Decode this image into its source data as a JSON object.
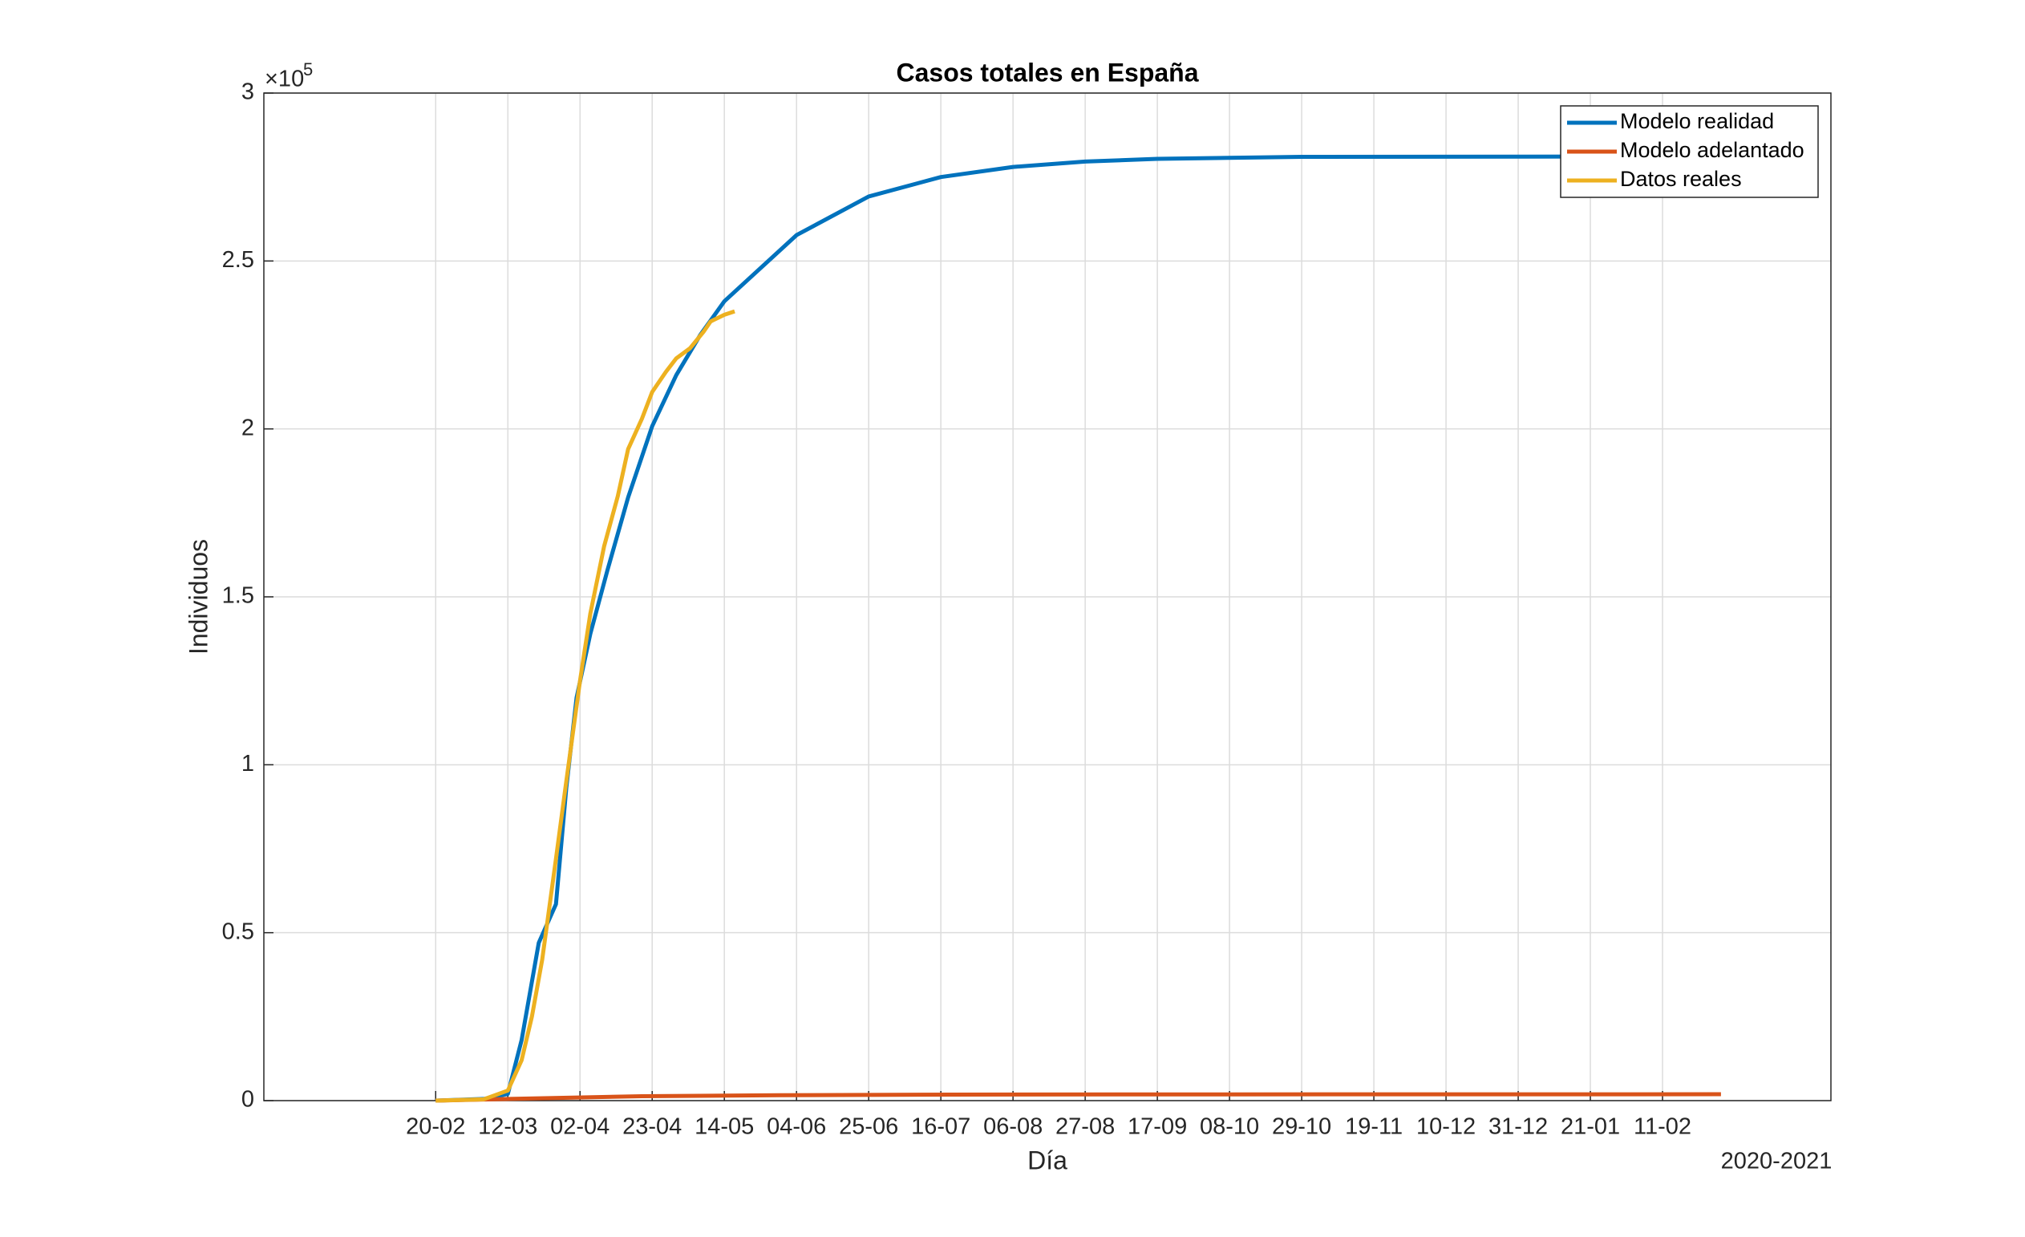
{
  "chart_data": {
    "type": "line",
    "title": "Casos totales en España",
    "x_label": "Día",
    "y_label": "Individuos",
    "x_note": "2020-2021",
    "y_exponent_base": "×10",
    "y_exponent": "5",
    "xlim": [
      -50,
      406
    ],
    "xticks": [
      {
        "value": 0,
        "label": "20-02"
      },
      {
        "value": 21,
        "label": "12-03"
      },
      {
        "value": 42,
        "label": "02-04"
      },
      {
        "value": 63,
        "label": "23-04"
      },
      {
        "value": 84,
        "label": "14-05"
      },
      {
        "value": 105,
        "label": "04-06"
      },
      {
        "value": 126,
        "label": "25-06"
      },
      {
        "value": 147,
        "label": "16-07"
      },
      {
        "value": 168,
        "label": "06-08"
      },
      {
        "value": 189,
        "label": "27-08"
      },
      {
        "value": 210,
        "label": "17-09"
      },
      {
        "value": 231,
        "label": "08-10"
      },
      {
        "value": 252,
        "label": "29-10"
      },
      {
        "value": 273,
        "label": "19-11"
      },
      {
        "value": 294,
        "label": "10-12"
      },
      {
        "value": 315,
        "label": "31-12"
      },
      {
        "value": 336,
        "label": "21-01"
      },
      {
        "value": 357,
        "label": "11-02"
      }
    ],
    "ylim": [
      0,
      300000
    ],
    "yticks": [
      0,
      {
        "value": 50000,
        "label": "0.5"
      },
      {
        "value": 100000,
        "label": "1"
      },
      {
        "value": 150000,
        "label": "1.5"
      },
      {
        "value": 200000,
        "label": "2"
      },
      {
        "value": 250000,
        "label": "2.5"
      },
      {
        "value": 300000,
        "label": "3"
      }
    ],
    "grid": true,
    "legend_position": "top-right",
    "series": [
      {
        "name": "Modelo realidad",
        "color": "#0072BD",
        "x": [
          0,
          14,
          21,
          24,
          25,
          28,
          30,
          35,
          38,
          41,
          45,
          50,
          56,
          63,
          70,
          77,
          84,
          105,
          126,
          147,
          168,
          189,
          210,
          252,
          337
        ],
        "values": [
          0,
          500,
          2000,
          14000,
          18000,
          35400,
          47000,
          58500,
          93000,
          120000,
          139000,
          158000,
          179600,
          200800,
          216000,
          228000,
          238000,
          257700,
          269200,
          275000,
          278000,
          279600,
          280400,
          281000,
          281100
        ]
      },
      {
        "name": "Modelo adelantado",
        "color": "#D95319",
        "x": [
          0,
          30,
          60,
          100,
          150,
          200,
          374
        ],
        "values": [
          0,
          700,
          1300,
          1600,
          1800,
          1850,
          1900
        ]
      },
      {
        "name": "Datos reales",
        "color": "#EDB120",
        "x": [
          0,
          14,
          21,
          25,
          28,
          31,
          35,
          38,
          42,
          45,
          49,
          53,
          56,
          60,
          63,
          67,
          70,
          74,
          78,
          80,
          84,
          87
        ],
        "values": [
          0,
          400,
          3000,
          12000,
          25000,
          42000,
          72000,
          95000,
          125000,
          145000,
          165000,
          180000,
          194000,
          203000,
          211000,
          217000,
          221000,
          224000,
          229000,
          232000,
          234000,
          235000
        ]
      }
    ]
  }
}
